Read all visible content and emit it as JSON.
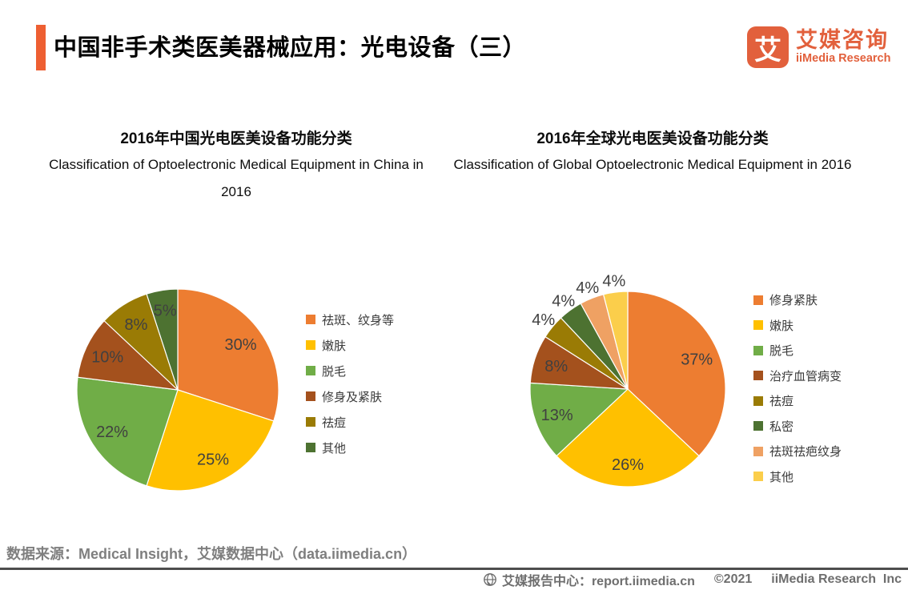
{
  "header": {
    "title": "中国非手术类医美器械应用：光电设备（三）",
    "accent_color": "#EE5F32",
    "logo": {
      "symbol": "艾",
      "name_cn": "艾媒咨询",
      "name_en": "iiMedia Research",
      "color": "#E2603C"
    }
  },
  "chart_data": [
    {
      "type": "pie",
      "title_cn": "2016年中国光电医美设备功能分类",
      "title_en": "Classification of Optoelectronic Medical Equipment in China in 2016",
      "categories": [
        "祛斑、纹身等",
        "嫩肤",
        "脱毛",
        "修身及紧肤",
        "祛痘",
        "其他"
      ],
      "values": [
        30,
        25,
        22,
        10,
        8,
        5
      ],
      "colors": [
        "#ED7D31",
        "#FFC000",
        "#70AD47",
        "#A4511D",
        "#9A7B05",
        "#4D7231"
      ],
      "label_format": "percent",
      "label_color": "#404040",
      "start_angle": 0,
      "direction": "clockwise",
      "legend_position": "right",
      "outside_label_below": 0
    },
    {
      "type": "pie",
      "title_cn": "2016年全球光电医美设备功能分类",
      "title_en": "Classification of Global Optoelectronic Medical Equipment in 2016",
      "categories": [
        "修身紧肤",
        "嫩肤",
        "脱毛",
        "治疗血管病变",
        "祛痘",
        "私密",
        "祛斑祛疤纹身",
        "其他"
      ],
      "values": [
        37,
        26,
        13,
        8,
        4,
        4,
        4,
        4
      ],
      "colors": [
        "#ED7D31",
        "#FFC000",
        "#70AD47",
        "#A4511D",
        "#9A7B05",
        "#4D7231",
        "#EFA163",
        "#FBCE4B"
      ],
      "label_format": "percent",
      "label_color": "#404040",
      "start_angle": 0,
      "direction": "clockwise",
      "legend_position": "right",
      "outside_label_below": 5
    }
  ],
  "source": {
    "text": "数据来源：Medical Insight，艾媒数据中心（data.iimedia.cn）"
  },
  "footer": {
    "report_center": "艾媒报告中心：report.iimedia.cn",
    "copyright": "©2021",
    "company": "iiMedia Research  Inc"
  }
}
